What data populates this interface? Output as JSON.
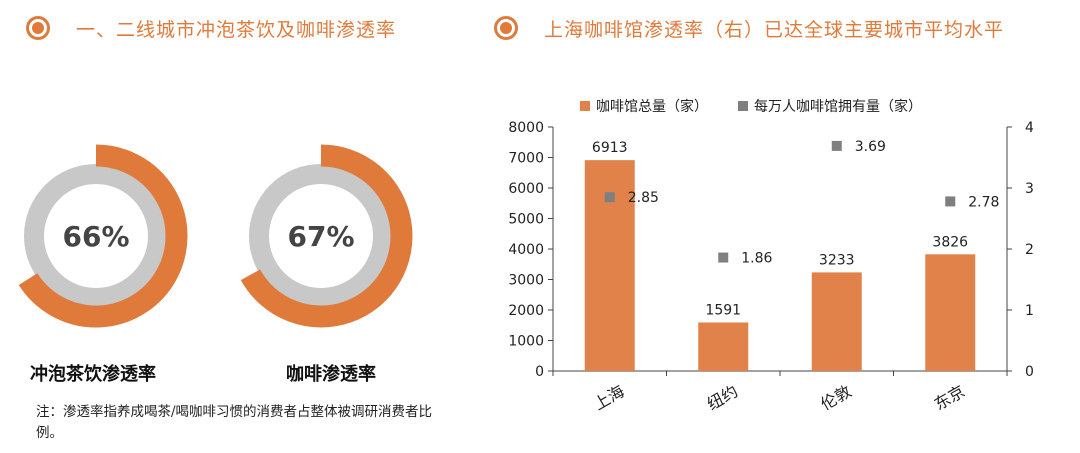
{
  "left": {
    "title": "一、二线城市冲泡茶饮及咖啡渗透率",
    "donuts": [
      {
        "label": "冲泡茶饮渗透率",
        "value_text": "66%",
        "value": 0.66
      },
      {
        "label": "咖啡渗透率",
        "value_text": "67%",
        "value": 0.67
      }
    ],
    "note": "注：渗透率指养成喝茶/喝咖啡习惯的消费者占整体被调研消费者比例。"
  },
  "right": {
    "title": "上海咖啡馆渗透率（右）已达全球主要城市平均水平"
  },
  "colors": {
    "accent": "#e07a3a",
    "bar": "#e0824a",
    "square": "#7f7f7f",
    "ring_bg": "#c8c8c8"
  },
  "chart_data": [
    {
      "type": "pie",
      "title": "冲泡茶饮渗透率",
      "values": [
        66,
        34
      ],
      "labels": [
        "66%",
        ""
      ]
    },
    {
      "type": "pie",
      "title": "咖啡渗透率",
      "values": [
        67,
        33
      ],
      "labels": [
        "67%",
        ""
      ]
    },
    {
      "type": "bar",
      "categories": [
        "上海",
        "纽约",
        "伦敦",
        "东京"
      ],
      "series": [
        {
          "name": "咖啡馆总量（家）",
          "axis": "left",
          "type": "bar",
          "values": [
            6913,
            1591,
            3233,
            3826
          ]
        },
        {
          "name": "每万人咖啡馆拥有量（家）",
          "axis": "right",
          "type": "scatter",
          "values": [
            2.85,
            1.86,
            3.69,
            2.78
          ]
        }
      ],
      "ylim": [
        0,
        8000
      ],
      "yticks": [
        "0",
        "1000",
        "2000",
        "3000",
        "4000",
        "5000",
        "6000",
        "7000",
        "8000"
      ],
      "y2lim": [
        0,
        4
      ],
      "y2ticks": [
        "0",
        "1",
        "2",
        "3",
        "4"
      ],
      "legend": "top",
      "grid": false
    }
  ]
}
